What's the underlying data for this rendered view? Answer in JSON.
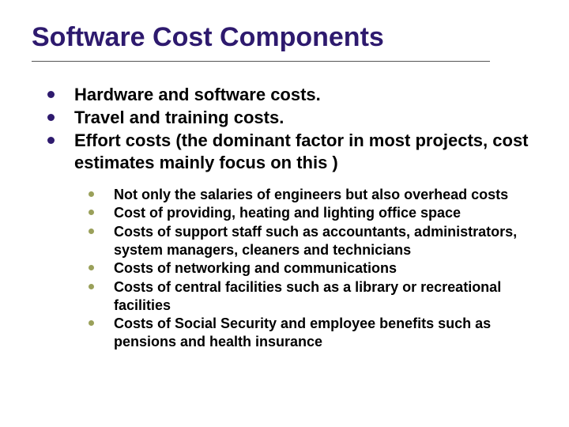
{
  "title": "Software Cost Components",
  "bullets": [
    {
      "text": "Hardware and software costs."
    },
    {
      "text": "Travel and training costs."
    },
    {
      "text": "Effort costs  (the dominant factor in most projects, cost estimates mainly focus on this )",
      "sub": [
        {
          "text": "Not only the salaries of engineers but also overhead costs"
        },
        {
          "text": "Cost of providing, heating and lighting office space"
        },
        {
          "text": "Costs of support staff such as accountants, administrators, system managers, cleaners and technicians"
        },
        {
          "text": "Costs of networking and communications"
        },
        {
          "text": "Costs of central facilities such as a library or recreational facilities"
        },
        {
          "text": "Costs of Social Security and employee benefits such as pensions and health insurance"
        }
      ]
    }
  ]
}
